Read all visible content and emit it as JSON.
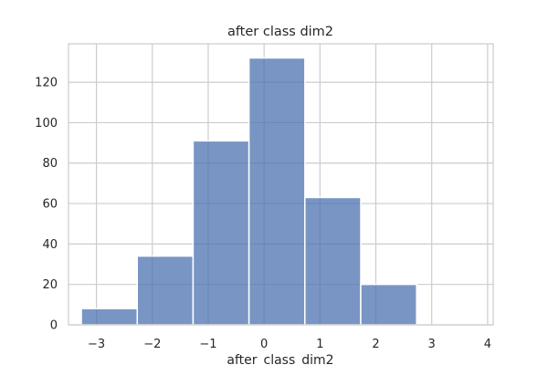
{
  "chart_data": {
    "type": "bar",
    "title": "after class dim2",
    "xlabel": "after_class_dim2",
    "ylabel": "",
    "xlim": [
      -3.5,
      4.1
    ],
    "ylim": [
      0,
      139
    ],
    "x_ticks": [
      -3,
      -2,
      -1,
      0,
      1,
      2,
      3,
      4
    ],
    "x_tick_labels": [
      "−3",
      "−2",
      "−1",
      "0",
      "1",
      "2",
      "3",
      "4"
    ],
    "y_ticks": [
      0,
      20,
      40,
      60,
      80,
      100,
      120
    ],
    "y_tick_labels": [
      "0",
      "20",
      "40",
      "60",
      "80",
      "100",
      "120"
    ],
    "grid": true,
    "bins": [
      {
        "start": -3.27,
        "end": -2.27,
        "value": 8
      },
      {
        "start": -2.27,
        "end": -1.27,
        "value": 34
      },
      {
        "start": -1.27,
        "end": -0.27,
        "value": 91
      },
      {
        "start": -0.27,
        "end": 0.73,
        "value": 132
      },
      {
        "start": 0.73,
        "end": 1.73,
        "value": 63
      },
      {
        "start": 1.73,
        "end": 2.73,
        "value": 20
      },
      {
        "start": 2.73,
        "end": 3.73,
        "value": 0
      }
    ],
    "bar_color": "#4c72b0",
    "bar_opacity": 0.75,
    "grid_color": "#cccccc"
  }
}
